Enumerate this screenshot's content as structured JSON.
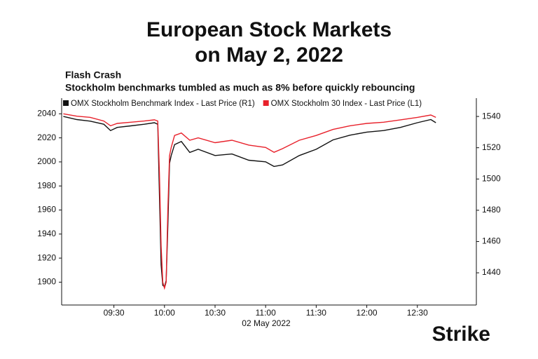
{
  "chart_data": {
    "type": "line",
    "title": "European Stock Markets",
    "title_line2": "on May 2, 2022",
    "subtitle": "Flash Crash",
    "annotation": "Stockholm benchmarks tumbled as much as 8% before quickly rebouncing",
    "xlabel": "02 May 2022",
    "logo": "Strike",
    "x": [
      540,
      548,
      556,
      564,
      568,
      572,
      580,
      588,
      594,
      596,
      597,
      598,
      599,
      600,
      601,
      602,
      603,
      604,
      606,
      610,
      615,
      620,
      630,
      640,
      650,
      660,
      665,
      670,
      680,
      690,
      700,
      710,
      720,
      730,
      740,
      750,
      758,
      761
    ],
    "xlim": [
      539,
      785
    ],
    "xticks": [
      {
        "value": 570,
        "label": "09:30"
      },
      {
        "value": 600,
        "label": "10:00"
      },
      {
        "value": 630,
        "label": "10:30"
      },
      {
        "value": 660,
        "label": "11:00"
      },
      {
        "value": 690,
        "label": "11:30"
      },
      {
        "value": 720,
        "label": "12:00"
      },
      {
        "value": 750,
        "label": "12:30"
      }
    ],
    "ylim": [
      1881,
      2053
    ],
    "yticks": [
      1900,
      1920,
      1940,
      1960,
      1980,
      2000,
      2020,
      2040
    ],
    "y2lim": [
      1419.4,
      1551.7
    ],
    "y2ticks": [
      1440,
      1460,
      1480,
      1500,
      1520,
      1540
    ],
    "grid": false,
    "series": [
      {
        "name": "OMX Stockholm Benchmark Index - Last Price (R1)",
        "color": "#111111",
        "axis": "y2",
        "values": [
          1540,
          1538,
          1537,
          1535,
          1531,
          1533,
          1534,
          1535,
          1536,
          1535,
          1490,
          1445,
          1432,
          1431,
          1435,
          1470,
          1510,
          1515,
          1522,
          1524,
          1517,
          1519,
          1515,
          1516,
          1512,
          1511,
          1508,
          1509,
          1515,
          1519,
          1525,
          1528,
          1530,
          1531,
          1533,
          1536,
          1538,
          1536
        ]
      },
      {
        "name": "OMX Stockholm 30 Index - Last Price (L1)",
        "color": "#e8212b",
        "values": [
          2040,
          2038,
          2037,
          2034,
          2030,
          2032,
          2033,
          2034,
          2035,
          2034,
          1990,
          1930,
          1900,
          1895,
          1900,
          1960,
          2005,
          2012,
          2022,
          2024,
          2018,
          2020,
          2016,
          2018,
          2014,
          2012,
          2008,
          2011,
          2018,
          2022,
          2027,
          2030,
          2032,
          2033,
          2035,
          2037,
          2039,
          2037
        ]
      }
    ]
  }
}
